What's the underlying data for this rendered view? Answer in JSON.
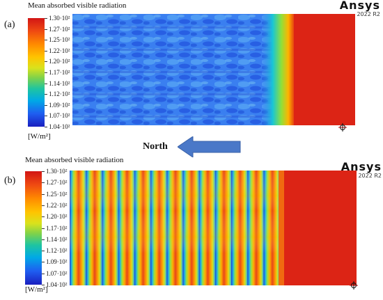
{
  "panels": [
    {
      "label": "(a)",
      "legend_title": "Mean absorbed visible radiation",
      "ticks": [
        "1.30·10²",
        "1.27·10²",
        "1.25·10²",
        "1.22·10²",
        "1.20·10²",
        "1.17·10²",
        "1.14·10²",
        "1.12·10²",
        "1.09·10²",
        "1.07·10²",
        "1.04·10²"
      ],
      "unit": "[W/m²]",
      "brand": "Ansys",
      "brand_version": "2022 R2"
    },
    {
      "label": "(b)",
      "legend_title": "Mean absorbed visible radiation",
      "ticks": [
        "1.30·10²",
        "1.27·10²",
        "1.25·10²",
        "1.22·10²",
        "1.20·10²",
        "1.17·10²",
        "1.14·10²",
        "1.12·10²",
        "1.09·10²",
        "1.07·10²",
        "1.04·10²"
      ],
      "unit": "[W/m²]",
      "brand": "Ansys",
      "brand_version": "2022 R2"
    }
  ],
  "direction_label": "North",
  "colors": {
    "high": "#d21515",
    "low": "#1a1fbf",
    "arrow": "#4a78c8"
  }
}
